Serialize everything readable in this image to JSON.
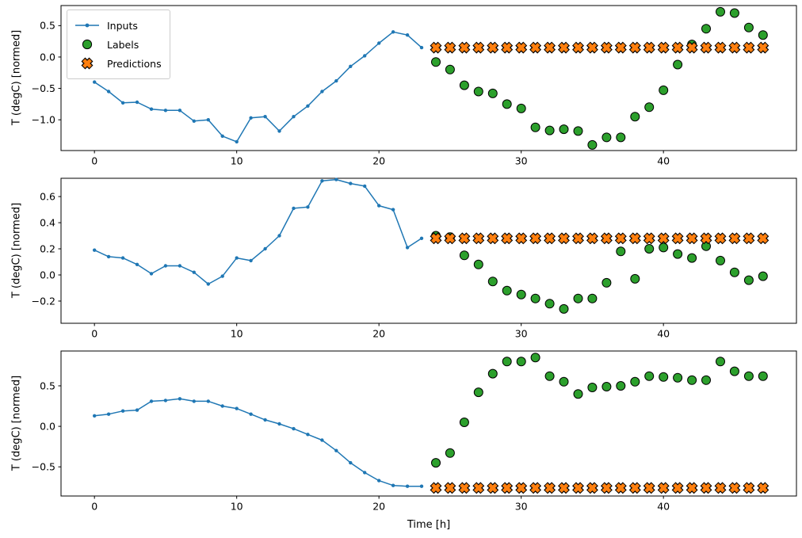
{
  "figure": {
    "background": "#ffffff"
  },
  "legend": {
    "position": "upper-left",
    "entries": [
      {
        "label": "Inputs",
        "marker": "line-dot"
      },
      {
        "label": "Labels",
        "marker": "circle"
      },
      {
        "label": "Predictions",
        "marker": "x"
      }
    ]
  },
  "colors": {
    "inputs": "#1f77b4",
    "labels": "#2ca02c",
    "predictions": "#ff7f0e",
    "marker_edge": "#000000",
    "spine": "#000000"
  },
  "chart_data": [
    {
      "type": "line+scatter",
      "xlabel": "",
      "ylabel": "T (degC) [normed]",
      "xlim": [
        -2.35,
        49.35
      ],
      "ylim": [
        -1.49,
        0.82
      ],
      "xticks": [
        0,
        10,
        20,
        30,
        40
      ],
      "yticks": [
        0.5,
        0.0,
        -0.5,
        -1.0
      ],
      "grid": false,
      "series": [
        {
          "name": "Inputs",
          "type": "line",
          "x_start": 0,
          "y": [
            -0.4,
            -0.55,
            -0.73,
            -0.72,
            -0.83,
            -0.85,
            -0.85,
            -1.02,
            -1.0,
            -1.26,
            -1.35,
            -0.97,
            -0.95,
            -1.18,
            -0.95,
            -0.78,
            -0.55,
            -0.38,
            -0.15,
            0.02,
            0.22,
            0.4,
            0.35,
            0.15
          ]
        },
        {
          "name": "Labels",
          "type": "scatter-circle",
          "x_start": 24,
          "y": [
            -0.08,
            -0.2,
            -0.45,
            -0.55,
            -0.58,
            -0.75,
            -0.82,
            -1.12,
            -1.17,
            -1.15,
            -1.18,
            -1.4,
            -1.28,
            -1.28,
            -0.95,
            -0.8,
            -0.53,
            -0.12,
            0.2,
            0.45,
            0.72,
            0.7,
            0.47,
            0.35
          ]
        },
        {
          "name": "Predictions",
          "type": "scatter-x",
          "x_start": 24,
          "count": 24,
          "y_const": 0.15
        }
      ]
    },
    {
      "type": "line+scatter",
      "xlabel": "",
      "ylabel": "T (degC) [normed]",
      "xlim": [
        -2.35,
        49.35
      ],
      "ylim": [
        -0.37,
        0.74
      ],
      "xticks": [
        0,
        10,
        20,
        30,
        40
      ],
      "yticks": [
        0.6,
        0.4,
        0.2,
        0.0,
        -0.2
      ],
      "grid": false,
      "series": [
        {
          "name": "Inputs",
          "type": "line",
          "x_start": 0,
          "y": [
            0.19,
            0.14,
            0.13,
            0.08,
            0.01,
            0.07,
            0.07,
            0.02,
            -0.07,
            -0.01,
            0.13,
            0.11,
            0.2,
            0.3,
            0.51,
            0.52,
            0.72,
            0.73,
            0.7,
            0.68,
            0.53,
            0.5,
            0.21,
            0.28
          ]
        },
        {
          "name": "Labels",
          "type": "scatter-circle",
          "x_start": 24,
          "y": [
            0.3,
            0.29,
            0.15,
            0.08,
            -0.05,
            -0.12,
            -0.15,
            -0.18,
            -0.22,
            -0.26,
            -0.18,
            -0.18,
            -0.06,
            0.18,
            -0.03,
            0.2,
            0.21,
            0.16,
            0.13,
            0.22,
            0.11,
            0.02,
            -0.04,
            -0.01
          ]
        },
        {
          "name": "Predictions",
          "type": "scatter-x",
          "x_start": 24,
          "count": 24,
          "y_const": 0.28
        }
      ]
    },
    {
      "type": "line+scatter",
      "xlabel": "Time [h]",
      "ylabel": "T (degC) [normed]",
      "xlim": [
        -2.35,
        49.35
      ],
      "ylim": [
        -0.86,
        0.93
      ],
      "xticks": [
        0,
        10,
        20,
        30,
        40
      ],
      "yticks": [
        0.5,
        0.0,
        -0.5
      ],
      "grid": false,
      "series": [
        {
          "name": "Inputs",
          "type": "line",
          "x_start": 0,
          "y": [
            0.13,
            0.15,
            0.19,
            0.2,
            0.31,
            0.32,
            0.34,
            0.31,
            0.31,
            0.25,
            0.22,
            0.15,
            0.08,
            0.03,
            -0.03,
            -0.1,
            -0.17,
            -0.3,
            -0.45,
            -0.57,
            -0.67,
            -0.73,
            -0.74,
            -0.74
          ]
        },
        {
          "name": "Labels",
          "type": "scatter-circle",
          "x_start": 24,
          "y": [
            -0.45,
            -0.33,
            0.05,
            0.42,
            0.65,
            0.8,
            0.8,
            0.85,
            0.62,
            0.55,
            0.4,
            0.48,
            0.49,
            0.5,
            0.55,
            0.62,
            0.61,
            0.6,
            0.57,
            0.57,
            0.8,
            0.68,
            0.62,
            0.62
          ]
        },
        {
          "name": "Predictions",
          "type": "scatter-x",
          "x_start": 24,
          "count": 24,
          "y_const": -0.76
        }
      ]
    }
  ]
}
